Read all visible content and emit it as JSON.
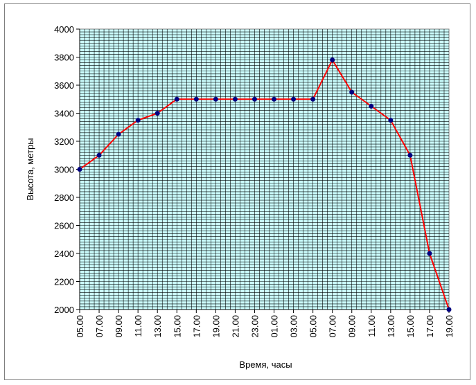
{
  "chart_data": {
    "type": "line",
    "title": "",
    "xlabel": "Время, часы",
    "ylabel": "Высота, метры",
    "categories": [
      "05.00",
      "07.00",
      "09.00",
      "11.00",
      "13.00",
      "15.00",
      "17.00",
      "19.00",
      "21.00",
      "23.00",
      "01.00",
      "03.00",
      "05.00",
      "07.00",
      "09.00",
      "11.00",
      "13.00",
      "15.00",
      "17.00",
      "19.00"
    ],
    "series": [
      {
        "values": [
          3000,
          3100,
          3250,
          3350,
          3400,
          3500,
          3500,
          3500,
          3500,
          3500,
          3500,
          3500,
          3500,
          3780,
          3550,
          3450,
          3350,
          3100,
          2400,
          2000
        ]
      }
    ],
    "ylim": [
      2000,
      4000
    ],
    "yticks": [
      2000,
      2200,
      2400,
      2600,
      2800,
      3000,
      3200,
      3400,
      3600,
      3800,
      4000
    ],
    "grid": true,
    "legend": "none",
    "colors": {
      "plot_bg": "#ccffff",
      "grid": "#000000",
      "line": "#ff0000",
      "marker": "#000080"
    }
  }
}
